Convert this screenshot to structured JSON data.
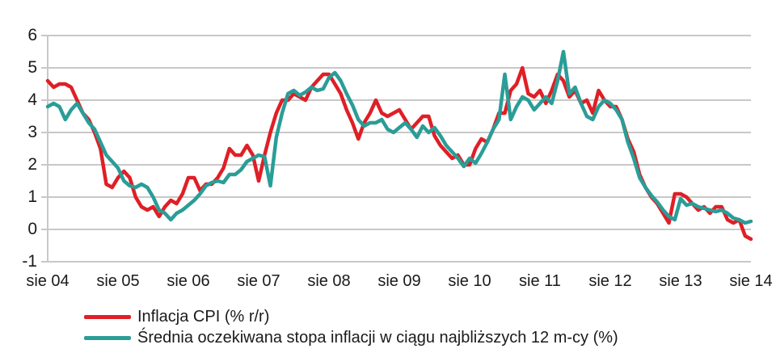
{
  "chart_data": {
    "type": "line",
    "title": "",
    "xlabel": "",
    "ylabel": "",
    "x_tick_labels": [
      "sie 04",
      "sie 05",
      "sie 06",
      "sie 07",
      "sie 08",
      "sie 09",
      "sie 10",
      "sie 11",
      "sie 12",
      "sie 13",
      "sie 14"
    ],
    "x_frequency": "monthly",
    "points_per_tick": 12,
    "y_ticks": [
      6,
      5,
      4,
      3,
      2,
      1,
      0,
      -1
    ],
    "ylim": [
      -1,
      6
    ],
    "grid": true,
    "grid_color": "#c8c8c8",
    "axis_color": "#c8c8c8",
    "text_color": "#1a1a1a",
    "legend_position": "bottom-left",
    "series": [
      {
        "key": "cpi",
        "name": "Inflacja CPI (% r/r)",
        "color": "#df1f26",
        "values": [
          4.6,
          4.4,
          4.5,
          4.5,
          4.4,
          4.0,
          3.6,
          3.4,
          3.0,
          2.5,
          1.4,
          1.3,
          1.6,
          1.8,
          1.6,
          1.0,
          0.7,
          0.6,
          0.7,
          0.4,
          0.7,
          0.9,
          0.8,
          1.1,
          1.6,
          1.6,
          1.2,
          1.4,
          1.4,
          1.6,
          1.9,
          2.5,
          2.3,
          2.3,
          2.6,
          2.3,
          1.5,
          2.3,
          3.0,
          3.6,
          4.0,
          4.0,
          4.2,
          4.1,
          4.0,
          4.4,
          4.6,
          4.8,
          4.8,
          4.5,
          4.2,
          3.7,
          3.3,
          2.8,
          3.3,
          3.6,
          4.0,
          3.6,
          3.5,
          3.6,
          3.7,
          3.4,
          3.1,
          3.3,
          3.5,
          3.5,
          2.9,
          2.6,
          2.4,
          2.2,
          2.3,
          2.0,
          2.0,
          2.5,
          2.8,
          2.7,
          3.1,
          3.6,
          3.6,
          4.3,
          4.5,
          5.0,
          4.2,
          4.1,
          4.3,
          3.9,
          4.3,
          4.8,
          4.6,
          4.1,
          4.3,
          3.9,
          4.0,
          3.6,
          4.3,
          4.0,
          3.8,
          3.8,
          3.4,
          2.8,
          2.4,
          1.7,
          1.3,
          1.0,
          0.8,
          0.5,
          0.2,
          1.1,
          1.1,
          1.0,
          0.8,
          0.6,
          0.7,
          0.5,
          0.7,
          0.7,
          0.3,
          0.2,
          0.3,
          -0.2,
          -0.3
        ]
      },
      {
        "key": "expected",
        "name": "Średnia oczekiwana stopa inflacji w ciągu najbliższych 12 m-cy (%)",
        "color": "#2a9d97",
        "values": [
          3.8,
          3.9,
          3.8,
          3.4,
          3.7,
          3.9,
          3.6,
          3.3,
          3.1,
          2.7,
          2.3,
          2.1,
          1.9,
          1.5,
          1.35,
          1.3,
          1.4,
          1.3,
          1.0,
          0.6,
          0.5,
          0.3,
          0.5,
          0.6,
          0.75,
          0.9,
          1.1,
          1.35,
          1.45,
          1.5,
          1.45,
          1.7,
          1.7,
          1.85,
          2.1,
          2.2,
          2.3,
          2.25,
          1.35,
          2.85,
          3.6,
          4.2,
          4.3,
          4.15,
          4.25,
          4.4,
          4.3,
          4.35,
          4.7,
          4.85,
          4.6,
          4.2,
          3.85,
          3.4,
          3.2,
          3.3,
          3.3,
          3.4,
          3.1,
          3.0,
          3.15,
          3.3,
          3.1,
          2.85,
          3.2,
          3.0,
          3.15,
          2.9,
          2.6,
          2.4,
          2.2,
          1.95,
          2.2,
          2.05,
          2.35,
          2.7,
          3.1,
          3.4,
          4.8,
          3.4,
          3.8,
          4.1,
          4.0,
          3.7,
          3.9,
          4.1,
          3.9,
          4.6,
          5.5,
          4.2,
          4.4,
          3.9,
          3.5,
          3.4,
          3.8,
          4.0,
          3.9,
          3.7,
          3.4,
          2.7,
          2.2,
          1.6,
          1.3,
          1.05,
          0.85,
          0.6,
          0.4,
          0.3,
          0.95,
          0.75,
          0.8,
          0.7,
          0.65,
          0.6,
          0.55,
          0.6,
          0.5,
          0.35,
          0.3,
          0.2,
          0.25
        ]
      }
    ]
  }
}
